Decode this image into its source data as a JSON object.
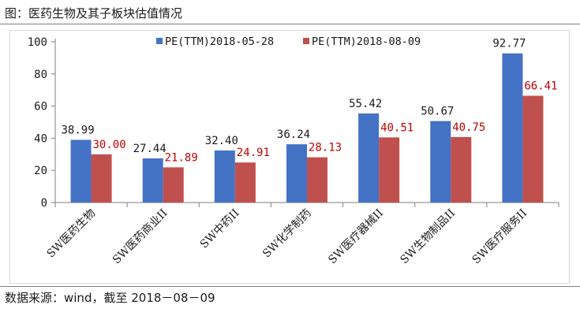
{
  "figure_title": "图：医药生物及其子板块估值情况",
  "source_note": "数据来源：wind，截至 2018－08－09",
  "colors": {
    "series1": "#4472C4",
    "series2": "#C0504D",
    "label2": "#C00000",
    "axis": "#7f7f7f"
  },
  "chart_data": {
    "type": "bar",
    "title": "",
    "xlabel": "",
    "ylabel": "",
    "ylim": [
      0,
      100
    ],
    "yticks": [
      0,
      20,
      40,
      60,
      80,
      100
    ],
    "categories": [
      "SW医药生物",
      "SW医药商业II",
      "SW中药II",
      "SW化学制药",
      "SW医疗器械II",
      "SW生物制品II",
      "SW医疗服务II"
    ],
    "series": [
      {
        "name": "PE(TTM)2018-05-28",
        "values": [
          38.99,
          27.44,
          32.4,
          36.24,
          55.42,
          50.67,
          92.77
        ],
        "labels": [
          "38.99",
          "27.44",
          "32.40",
          "36.24",
          "55.42",
          "50.67",
          "92.77"
        ]
      },
      {
        "name": "PE(TTM)2018-08-09",
        "values": [
          30.0,
          21.89,
          24.91,
          28.13,
          40.51,
          40.75,
          66.41
        ],
        "labels": [
          "30.00",
          "21.89",
          "24.91",
          "28.13",
          "40.51",
          "40.75",
          "66.41"
        ]
      }
    ],
    "legend": "top",
    "grid": false
  }
}
